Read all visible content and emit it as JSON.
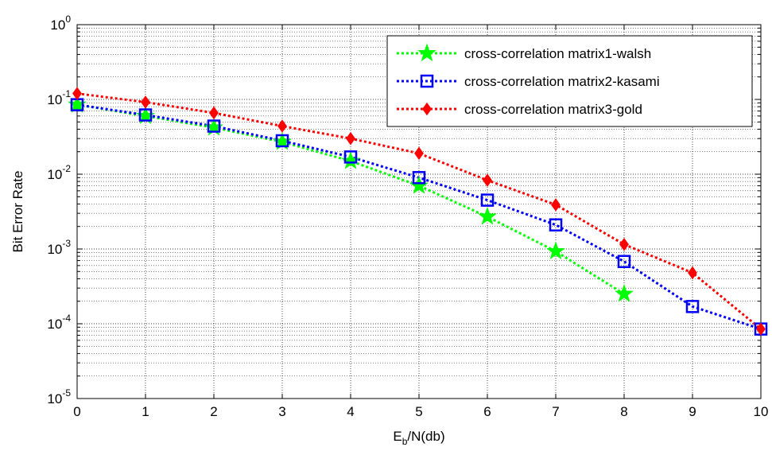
{
  "chart_data": {
    "type": "line",
    "xlabel_base": "E",
    "xlabel_sub": "b",
    "xlabel_rest": "/N(db)",
    "ylabel": "Bit Error Rate",
    "yscale": "log",
    "xlim": [
      0,
      10
    ],
    "ylim": [
      1e-05,
      1
    ],
    "grid": "on",
    "legend_position": "top-right",
    "x_ticks": [
      "0",
      "1",
      "2",
      "3",
      "4",
      "5",
      "6",
      "7",
      "8",
      "9",
      "10"
    ],
    "y_ticks": [
      {
        "base": "10",
        "exp": "0",
        "value": 1
      },
      {
        "base": "10",
        "exp": "-1",
        "value": 0.1
      },
      {
        "base": "10",
        "exp": "-2",
        "value": 0.01
      },
      {
        "base": "10",
        "exp": "-3",
        "value": 0.001
      },
      {
        "base": "10",
        "exp": "-4",
        "value": 0.0001
      },
      {
        "base": "10",
        "exp": "-5",
        "value": 1e-05
      }
    ],
    "series": [
      {
        "name": "cross-correlation matrix1-walsh",
        "color": "#00ff00",
        "marker": "star",
        "x": [
          0,
          1,
          2,
          3,
          4,
          5,
          6,
          7,
          8
        ],
        "y": [
          0.085,
          0.06,
          0.042,
          0.027,
          0.015,
          0.007,
          0.0027,
          0.00093,
          0.00025
        ]
      },
      {
        "name": "cross-correlation matrix2-kasami",
        "color": "#0000ff",
        "marker": "square",
        "x": [
          0,
          1,
          2,
          3,
          4,
          5,
          6,
          7,
          8,
          9,
          10
        ],
        "y": [
          0.085,
          0.062,
          0.044,
          0.028,
          0.017,
          0.009,
          0.0045,
          0.0021,
          0.00068,
          0.00017,
          8.5e-05
        ]
      },
      {
        "name": "cross-correlation matrix3-gold",
        "color": "#ff0000",
        "marker": "diamond",
        "x": [
          0,
          1,
          2,
          3,
          4,
          5,
          6,
          7,
          8,
          9,
          10
        ],
        "y": [
          0.12,
          0.092,
          0.066,
          0.044,
          0.03,
          0.019,
          0.0083,
          0.0039,
          0.00115,
          0.00048,
          8.5e-05
        ]
      }
    ]
  }
}
